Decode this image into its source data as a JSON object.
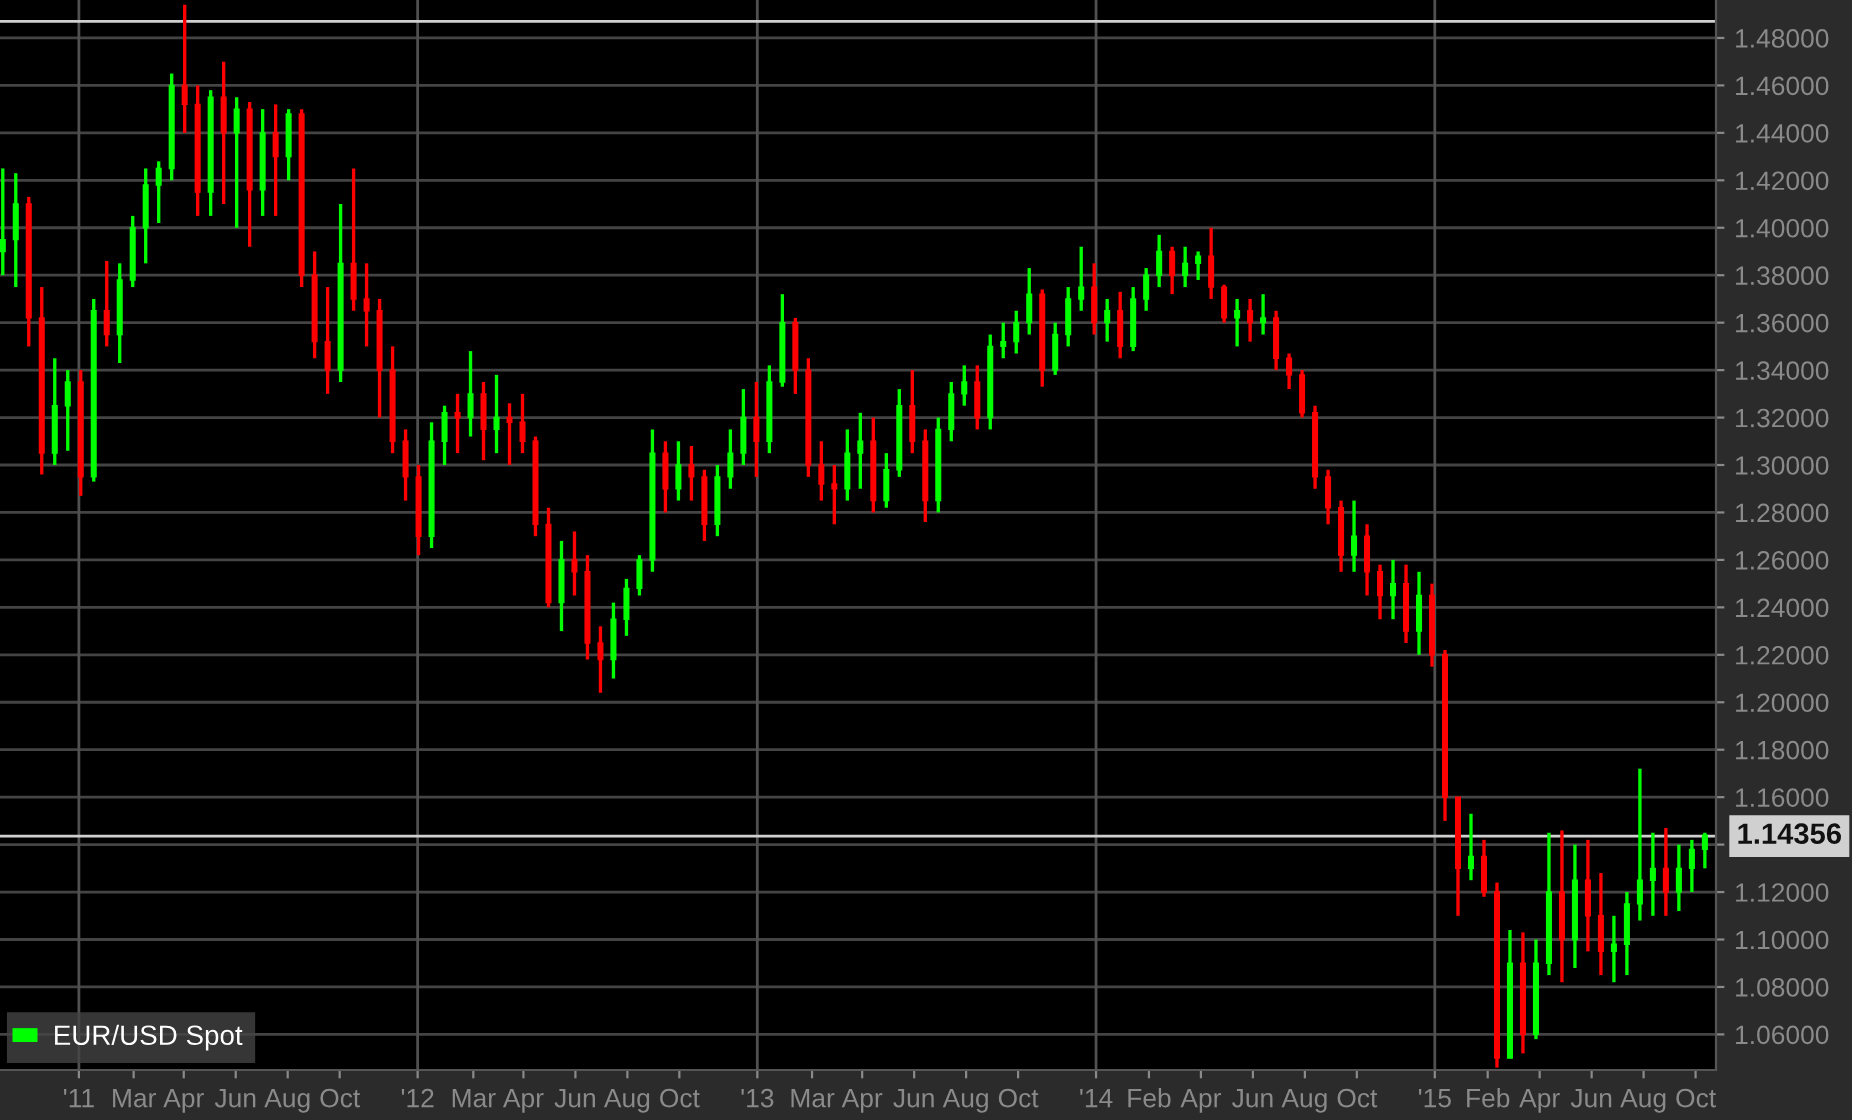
{
  "chart_data": {
    "type": "candlestick",
    "legend": "bottom left",
    "grid": "y",
    "x": [
      "2010-10-11",
      "2010-10-25",
      "2010-11-08",
      "2010-11-22",
      "2010-12-06",
      "2010-12-20",
      "2011-01-03",
      "2011-01-17",
      "2011-01-31",
      "2011-02-14",
      "2011-02-28",
      "2011-03-14",
      "2011-03-28",
      "2011-04-11",
      "2011-04-25",
      "2011-05-09",
      "2011-05-23",
      "2011-06-06",
      "2011-06-20",
      "2011-07-04",
      "2011-07-18",
      "2011-08-01",
      "2011-08-15",
      "2011-08-29",
      "2011-09-12",
      "2011-09-26",
      "2011-10-10",
      "2011-10-24",
      "2011-11-07",
      "2011-11-21",
      "2011-12-05",
      "2011-12-19",
      "2012-01-02",
      "2012-01-16",
      "2012-01-30",
      "2012-02-13",
      "2012-02-27",
      "2012-03-12",
      "2012-03-26",
      "2012-04-09",
      "2012-04-23",
      "2012-05-07",
      "2012-05-21",
      "2012-06-04",
      "2012-06-18",
      "2012-07-02",
      "2012-07-16",
      "2012-07-30",
      "2012-08-13",
      "2012-08-27",
      "2012-09-10",
      "2012-09-24",
      "2012-10-08",
      "2012-10-22",
      "2012-11-05",
      "2012-11-19",
      "2012-12-03",
      "2012-12-17",
      "2012-12-31",
      "2013-01-14",
      "2013-01-28",
      "2013-02-11",
      "2013-02-25",
      "2013-03-11",
      "2013-03-25",
      "2013-04-08",
      "2013-04-22",
      "2013-05-06",
      "2013-05-20",
      "2013-06-03",
      "2013-06-17",
      "2013-07-01",
      "2013-07-15",
      "2013-07-29",
      "2013-08-12",
      "2013-08-26",
      "2013-09-09",
      "2013-09-23",
      "2013-10-07",
      "2013-10-21",
      "2013-11-04",
      "2013-11-18",
      "2013-12-02",
      "2013-12-16",
      "2013-12-30",
      "2014-01-13",
      "2014-01-27",
      "2014-02-10",
      "2014-02-24",
      "2014-03-10",
      "2014-03-24",
      "2014-04-07",
      "2014-04-21",
      "2014-05-05",
      "2014-05-19",
      "2014-06-02",
      "2014-06-16",
      "2014-06-30",
      "2014-07-14",
      "2014-07-28",
      "2014-08-11",
      "2014-08-25",
      "2014-09-08",
      "2014-09-22",
      "2014-10-06",
      "2014-10-20",
      "2014-11-03",
      "2014-11-17",
      "2014-12-01",
      "2014-12-15",
      "2014-12-29",
      "2015-01-12",
      "2015-01-26",
      "2015-02-09",
      "2015-02-23",
      "2015-03-09",
      "2015-03-23",
      "2015-04-06",
      "2015-04-20",
      "2015-05-04",
      "2015-05-18",
      "2015-06-01",
      "2015-06-15",
      "2015-06-29",
      "2015-07-13",
      "2015-07-27",
      "2015-08-10",
      "2015-08-24",
      "2015-09-07",
      "2015-09-21",
      "2015-10-05",
      "2015-10-19"
    ],
    "series": [
      {
        "name": "EUR/USD Spot",
        "color": "#00ff00",
        "ohlc": [
          [
            1.39,
            1.425,
            1.38,
            1.395
          ],
          [
            1.395,
            1.423,
            1.375,
            1.41
          ],
          [
            1.41,
            1.413,
            1.35,
            1.362
          ],
          [
            1.362,
            1.375,
            1.296,
            1.305
          ],
          [
            1.305,
            1.345,
            1.3,
            1.325
          ],
          [
            1.325,
            1.34,
            1.306,
            1.335
          ],
          [
            1.335,
            1.34,
            1.287,
            1.295
          ],
          [
            1.295,
            1.37,
            1.293,
            1.365
          ],
          [
            1.365,
            1.386,
            1.35,
            1.355
          ],
          [
            1.355,
            1.385,
            1.343,
            1.378
          ],
          [
            1.378,
            1.405,
            1.375,
            1.4
          ],
          [
            1.4,
            1.425,
            1.385,
            1.418
          ],
          [
            1.418,
            1.428,
            1.402,
            1.425
          ],
          [
            1.425,
            1.465,
            1.42,
            1.46
          ],
          [
            1.46,
            1.494,
            1.44,
            1.452
          ],
          [
            1.452,
            1.46,
            1.405,
            1.415
          ],
          [
            1.415,
            1.458,
            1.405,
            1.455
          ],
          [
            1.455,
            1.47,
            1.41,
            1.44
          ],
          [
            1.44,
            1.455,
            1.4,
            1.45
          ],
          [
            1.45,
            1.453,
            1.392,
            1.416
          ],
          [
            1.416,
            1.45,
            1.405,
            1.44
          ],
          [
            1.44,
            1.452,
            1.405,
            1.43
          ],
          [
            1.43,
            1.45,
            1.42,
            1.448
          ],
          [
            1.448,
            1.45,
            1.375,
            1.38
          ],
          [
            1.38,
            1.39,
            1.345,
            1.352
          ],
          [
            1.352,
            1.375,
            1.33,
            1.34
          ],
          [
            1.34,
            1.41,
            1.335,
            1.385
          ],
          [
            1.385,
            1.425,
            1.365,
            1.37
          ],
          [
            1.37,
            1.385,
            1.35,
            1.365
          ],
          [
            1.365,
            1.37,
            1.32,
            1.34
          ],
          [
            1.34,
            1.35,
            1.305,
            1.31
          ],
          [
            1.31,
            1.315,
            1.285,
            1.295
          ],
          [
            1.295,
            1.3,
            1.262,
            1.27
          ],
          [
            1.27,
            1.318,
            1.265,
            1.31
          ],
          [
            1.31,
            1.325,
            1.3,
            1.322
          ],
          [
            1.322,
            1.33,
            1.305,
            1.32
          ],
          [
            1.32,
            1.348,
            1.312,
            1.33
          ],
          [
            1.33,
            1.335,
            1.302,
            1.315
          ],
          [
            1.315,
            1.338,
            1.305,
            1.32
          ],
          [
            1.32,
            1.326,
            1.3,
            1.318
          ],
          [
            1.318,
            1.33,
            1.305,
            1.31
          ],
          [
            1.31,
            1.312,
            1.27,
            1.275
          ],
          [
            1.275,
            1.282,
            1.24,
            1.242
          ],
          [
            1.242,
            1.268,
            1.23,
            1.26
          ],
          [
            1.26,
            1.272,
            1.245,
            1.255
          ],
          [
            1.255,
            1.262,
            1.218,
            1.225
          ],
          [
            1.225,
            1.232,
            1.204,
            1.218
          ],
          [
            1.218,
            1.242,
            1.21,
            1.235
          ],
          [
            1.235,
            1.252,
            1.228,
            1.248
          ],
          [
            1.248,
            1.262,
            1.245,
            1.26
          ],
          [
            1.26,
            1.315,
            1.255,
            1.305
          ],
          [
            1.305,
            1.31,
            1.28,
            1.29
          ],
          [
            1.29,
            1.31,
            1.285,
            1.3
          ],
          [
            1.3,
            1.308,
            1.285,
            1.295
          ],
          [
            1.295,
            1.298,
            1.268,
            1.275
          ],
          [
            1.275,
            1.3,
            1.27,
            1.295
          ],
          [
            1.295,
            1.315,
            1.29,
            1.305
          ],
          [
            1.305,
            1.332,
            1.3,
            1.32
          ],
          [
            1.32,
            1.335,
            1.295,
            1.31
          ],
          [
            1.31,
            1.342,
            1.305,
            1.335
          ],
          [
            1.335,
            1.372,
            1.333,
            1.36
          ],
          [
            1.36,
            1.362,
            1.33,
            1.34
          ],
          [
            1.34,
            1.345,
            1.295,
            1.3
          ],
          [
            1.3,
            1.31,
            1.285,
            1.292
          ],
          [
            1.292,
            1.3,
            1.275,
            1.29
          ],
          [
            1.29,
            1.315,
            1.285,
            1.305
          ],
          [
            1.305,
            1.322,
            1.29,
            1.31
          ],
          [
            1.31,
            1.32,
            1.28,
            1.285
          ],
          [
            1.285,
            1.305,
            1.282,
            1.298
          ],
          [
            1.298,
            1.332,
            1.295,
            1.325
          ],
          [
            1.325,
            1.34,
            1.305,
            1.31
          ],
          [
            1.31,
            1.315,
            1.276,
            1.285
          ],
          [
            1.285,
            1.32,
            1.28,
            1.315
          ],
          [
            1.315,
            1.335,
            1.31,
            1.33
          ],
          [
            1.33,
            1.342,
            1.325,
            1.335
          ],
          [
            1.335,
            1.342,
            1.315,
            1.32
          ],
          [
            1.32,
            1.355,
            1.315,
            1.35
          ],
          [
            1.35,
            1.36,
            1.345,
            1.352
          ],
          [
            1.352,
            1.365,
            1.347,
            1.36
          ],
          [
            1.36,
            1.383,
            1.355,
            1.372
          ],
          [
            1.372,
            1.374,
            1.333,
            1.34
          ],
          [
            1.34,
            1.36,
            1.338,
            1.355
          ],
          [
            1.355,
            1.375,
            1.35,
            1.37
          ],
          [
            1.37,
            1.392,
            1.365,
            1.375
          ],
          [
            1.375,
            1.385,
            1.355,
            1.36
          ],
          [
            1.36,
            1.37,
            1.352,
            1.365
          ],
          [
            1.365,
            1.373,
            1.345,
            1.35
          ],
          [
            1.35,
            1.375,
            1.348,
            1.37
          ],
          [
            1.37,
            1.383,
            1.365,
            1.38
          ],
          [
            1.38,
            1.397,
            1.375,
            1.39
          ],
          [
            1.39,
            1.392,
            1.372,
            1.38
          ],
          [
            1.38,
            1.392,
            1.375,
            1.385
          ],
          [
            1.385,
            1.39,
            1.378,
            1.388
          ],
          [
            1.388,
            1.4,
            1.37,
            1.375
          ],
          [
            1.375,
            1.376,
            1.36,
            1.362
          ],
          [
            1.362,
            1.37,
            1.35,
            1.365
          ],
          [
            1.365,
            1.37,
            1.352,
            1.36
          ],
          [
            1.36,
            1.372,
            1.355,
            1.362
          ],
          [
            1.362,
            1.365,
            1.34,
            1.345
          ],
          [
            1.345,
            1.347,
            1.332,
            1.338
          ],
          [
            1.338,
            1.34,
            1.32,
            1.322
          ],
          [
            1.322,
            1.325,
            1.29,
            1.295
          ],
          [
            1.295,
            1.298,
            1.275,
            1.282
          ],
          [
            1.282,
            1.285,
            1.255,
            1.262
          ],
          [
            1.262,
            1.285,
            1.255,
            1.27
          ],
          [
            1.27,
            1.275,
            1.245,
            1.255
          ],
          [
            1.255,
            1.258,
            1.235,
            1.245
          ],
          [
            1.245,
            1.26,
            1.235,
            1.25
          ],
          [
            1.25,
            1.258,
            1.225,
            1.23
          ],
          [
            1.23,
            1.255,
            1.22,
            1.245
          ],
          [
            1.245,
            1.25,
            1.215,
            1.22
          ],
          [
            1.22,
            1.222,
            1.15,
            1.16
          ],
          [
            1.16,
            1.16,
            1.11,
            1.13
          ],
          [
            1.13,
            1.153,
            1.125,
            1.135
          ],
          [
            1.135,
            1.142,
            1.118,
            1.12
          ],
          [
            1.12,
            1.124,
            1.046,
            1.05
          ],
          [
            1.05,
            1.104,
            1.05,
            1.09
          ],
          [
            1.09,
            1.103,
            1.052,
            1.06
          ],
          [
            1.06,
            1.1,
            1.058,
            1.09
          ],
          [
            1.09,
            1.145,
            1.085,
            1.12
          ],
          [
            1.12,
            1.146,
            1.082,
            1.1
          ],
          [
            1.1,
            1.14,
            1.088,
            1.125
          ],
          [
            1.125,
            1.142,
            1.095,
            1.11
          ],
          [
            1.11,
            1.128,
            1.085,
            1.095
          ],
          [
            1.095,
            1.11,
            1.082,
            1.098
          ],
          [
            1.098,
            1.12,
            1.085,
            1.115
          ],
          [
            1.115,
            1.172,
            1.108,
            1.125
          ],
          [
            1.125,
            1.145,
            1.11,
            1.13
          ],
          [
            1.13,
            1.147,
            1.11,
            1.12
          ],
          [
            1.12,
            1.14,
            1.112,
            1.13
          ],
          [
            1.13,
            1.142,
            1.12,
            1.138
          ],
          [
            1.138,
            1.145,
            1.13,
            1.144
          ]
        ],
        "colors": [
          "#00ff00",
          "#00ff00",
          "#ff0000",
          "#ff0000",
          "#00ff00",
          "#00ff00",
          "#ff0000",
          "#00ff00",
          "#ff0000",
          "#00ff00",
          "#00ff00",
          "#00ff00",
          "#00ff00",
          "#00ff00",
          "#ff0000",
          "#ff0000",
          "#00ff00",
          "#ff0000",
          "#00ff00",
          "#ff0000",
          "#00ff00",
          "#ff0000",
          "#00ff00",
          "#ff0000",
          "#ff0000",
          "#ff0000",
          "#00ff00",
          "#ff0000",
          "#ff0000",
          "#ff0000",
          "#ff0000",
          "#ff0000",
          "#ff0000",
          "#00ff00",
          "#00ff00",
          "#ff0000",
          "#00ff00",
          "#ff0000",
          "#00ff00",
          "#ff0000",
          "#ff0000",
          "#ff0000",
          "#ff0000",
          "#00ff00",
          "#ff0000",
          "#ff0000",
          "#ff0000",
          "#00ff00",
          "#00ff00",
          "#00ff00",
          "#00ff00",
          "#ff0000",
          "#00ff00",
          "#ff0000",
          "#ff0000",
          "#00ff00",
          "#00ff00",
          "#00ff00",
          "#ff0000",
          "#00ff00",
          "#00ff00",
          "#ff0000",
          "#ff0000",
          "#ff0000",
          "#ff0000",
          "#00ff00",
          "#00ff00",
          "#ff0000",
          "#00ff00",
          "#00ff00",
          "#ff0000",
          "#ff0000",
          "#00ff00",
          "#00ff00",
          "#00ff00",
          "#ff0000",
          "#00ff00",
          "#00ff00",
          "#00ff00",
          "#00ff00",
          "#ff0000",
          "#00ff00",
          "#00ff00",
          "#00ff00",
          "#ff0000",
          "#00ff00",
          "#ff0000",
          "#00ff00",
          "#00ff00",
          "#00ff00",
          "#ff0000",
          "#00ff00",
          "#00ff00",
          "#ff0000",
          "#ff0000",
          "#00ff00",
          "#ff0000",
          "#00ff00",
          "#ff0000",
          "#ff0000",
          "#ff0000",
          "#ff0000",
          "#ff0000",
          "#ff0000",
          "#00ff00",
          "#ff0000",
          "#ff0000",
          "#00ff00",
          "#ff0000",
          "#00ff00",
          "#ff0000",
          "#ff0000",
          "#ff0000",
          "#00ff00",
          "#ff0000",
          "#ff0000",
          "#00ff00",
          "#ff0000",
          "#00ff00",
          "#00ff00",
          "#ff0000",
          "#00ff00",
          "#ff0000",
          "#ff0000",
          "#00ff00",
          "#00ff00",
          "#00ff00",
          "#00ff00",
          "#ff0000",
          "#00ff00",
          "#00ff00",
          "#00ff00"
        ]
      }
    ],
    "xlim": [
      "2010-10-08",
      "2015-10-31"
    ],
    "xticks": [
      {
        "value": "2011-01-01",
        "label": "'11"
      },
      {
        "value": "2011-03-01",
        "label": "Mar"
      },
      {
        "value": "2011-04-24",
        "label": "Apr"
      },
      {
        "value": "2011-06-19",
        "label": "Jun"
      },
      {
        "value": "2011-08-14",
        "label": "Aug"
      },
      {
        "value": "2011-10-09",
        "label": "Oct"
      },
      {
        "value": "2012-01-01",
        "label": "'12"
      },
      {
        "value": "2012-03-01",
        "label": "Mar"
      },
      {
        "value": "2012-04-24",
        "label": "Apr"
      },
      {
        "value": "2012-06-19",
        "label": "Jun"
      },
      {
        "value": "2012-08-14",
        "label": "Aug"
      },
      {
        "value": "2012-10-09",
        "label": "Oct"
      },
      {
        "value": "2013-01-01",
        "label": "'13"
      },
      {
        "value": "2013-03-01",
        "label": "Mar"
      },
      {
        "value": "2013-04-24",
        "label": "Apr"
      },
      {
        "value": "2013-06-19",
        "label": "Jun"
      },
      {
        "value": "2013-08-14",
        "label": "Aug"
      },
      {
        "value": "2013-10-09",
        "label": "Oct"
      },
      {
        "value": "2014-01-01",
        "label": "'14"
      },
      {
        "value": "2014-02-27",
        "label": "Feb"
      },
      {
        "value": "2014-04-24",
        "label": "Apr"
      },
      {
        "value": "2014-06-19",
        "label": "Jun"
      },
      {
        "value": "2014-08-14",
        "label": "Aug"
      },
      {
        "value": "2014-10-09",
        "label": "Oct"
      },
      {
        "value": "2015-01-01",
        "label": "'15"
      },
      {
        "value": "2015-02-27",
        "label": "Feb"
      },
      {
        "value": "2015-04-24",
        "label": "Apr"
      },
      {
        "value": "2015-06-19",
        "label": "Jun"
      },
      {
        "value": "2015-08-14",
        "label": "Aug"
      },
      {
        "value": "2015-10-09",
        "label": "Oct"
      }
    ],
    "ylim": [
      1.045,
      1.496
    ],
    "yticks": [
      {
        "value": 1.06,
        "label": "1.06000"
      },
      {
        "value": 1.08,
        "label": "1.08000"
      },
      {
        "value": 1.1,
        "label": "1.10000"
      },
      {
        "value": 1.12,
        "label": "1.12000"
      },
      {
        "value": 1.14,
        "label": null
      },
      {
        "value": 1.16,
        "label": "1.16000"
      },
      {
        "value": 1.18,
        "label": "1.18000"
      },
      {
        "value": 1.2,
        "label": "1.20000"
      },
      {
        "value": 1.22,
        "label": "1.22000"
      },
      {
        "value": 1.24,
        "label": "1.24000"
      },
      {
        "value": 1.26,
        "label": "1.26000"
      },
      {
        "value": 1.28,
        "label": "1.28000"
      },
      {
        "value": 1.3,
        "label": "1.30000"
      },
      {
        "value": 1.32,
        "label": "1.32000"
      },
      {
        "value": 1.34,
        "label": "1.34000"
      },
      {
        "value": 1.36,
        "label": "1.36000"
      },
      {
        "value": 1.38,
        "label": "1.38000"
      },
      {
        "value": 1.4,
        "label": "1.40000"
      },
      {
        "value": 1.42,
        "label": "1.42000"
      },
      {
        "value": 1.44,
        "label": "1.44000"
      },
      {
        "value": 1.46,
        "label": "1.46000"
      },
      {
        "value": 1.48,
        "label": "1.48000"
      }
    ],
    "ref_lines": [
      {
        "axis": "y",
        "value": 1.14356,
        "label": "1.14356",
        "color": "#d0d0d0"
      },
      {
        "axis": "y",
        "value": 1.487,
        "color": "#d0d0d0"
      },
      {
        "axis": "x",
        "value": "2011-01-01",
        "color": "#505050"
      },
      {
        "axis": "x",
        "value": "2012-01-01",
        "color": "#505050"
      },
      {
        "axis": "x",
        "value": "2013-01-01",
        "color": "#505050"
      },
      {
        "axis": "x",
        "value": "2014-01-01",
        "color": "#505050"
      },
      {
        "axis": "x",
        "value": "2015-01-01",
        "color": "#505050"
      }
    ]
  }
}
